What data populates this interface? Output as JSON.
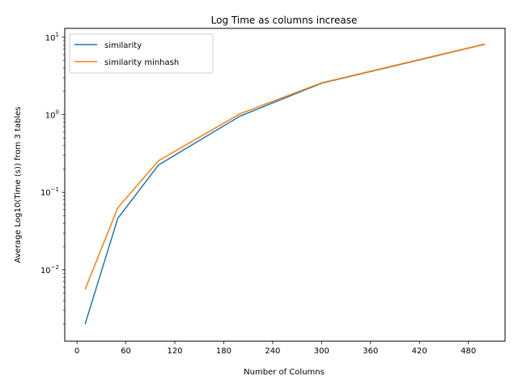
{
  "chart_data": {
    "type": "line",
    "title": "Log Time as columns increase",
    "xlabel": "Number of Columns",
    "ylabel": "Average Log10(Time (s)) from 3 tables",
    "yscale": "log",
    "xlim": [
      -15,
      525
    ],
    "ylim": [
      0.0012,
      13
    ],
    "xticks": [
      0,
      60,
      120,
      180,
      240,
      300,
      360,
      420,
      480
    ],
    "yticks": [
      0.01,
      0.1,
      1,
      10
    ],
    "ytick_labels": [
      {
        "base": "10",
        "exp": "−2"
      },
      {
        "base": "10",
        "exp": "−1"
      },
      {
        "base": "10",
        "exp": "0"
      },
      {
        "base": "10",
        "exp": "1"
      }
    ],
    "x": [
      10,
      50,
      100,
      200,
      300,
      500
    ],
    "series": [
      {
        "name": "similarity",
        "color": "#1f77b4",
        "values": [
          0.002,
          0.046,
          0.225,
          0.96,
          2.55,
          8.1
        ]
      },
      {
        "name": "similarity minhash",
        "color": "#ff7f0e",
        "values": [
          0.0056,
          0.063,
          0.255,
          1.03,
          2.58,
          8.15
        ]
      }
    ],
    "legend": "top-left",
    "grid": false
  }
}
